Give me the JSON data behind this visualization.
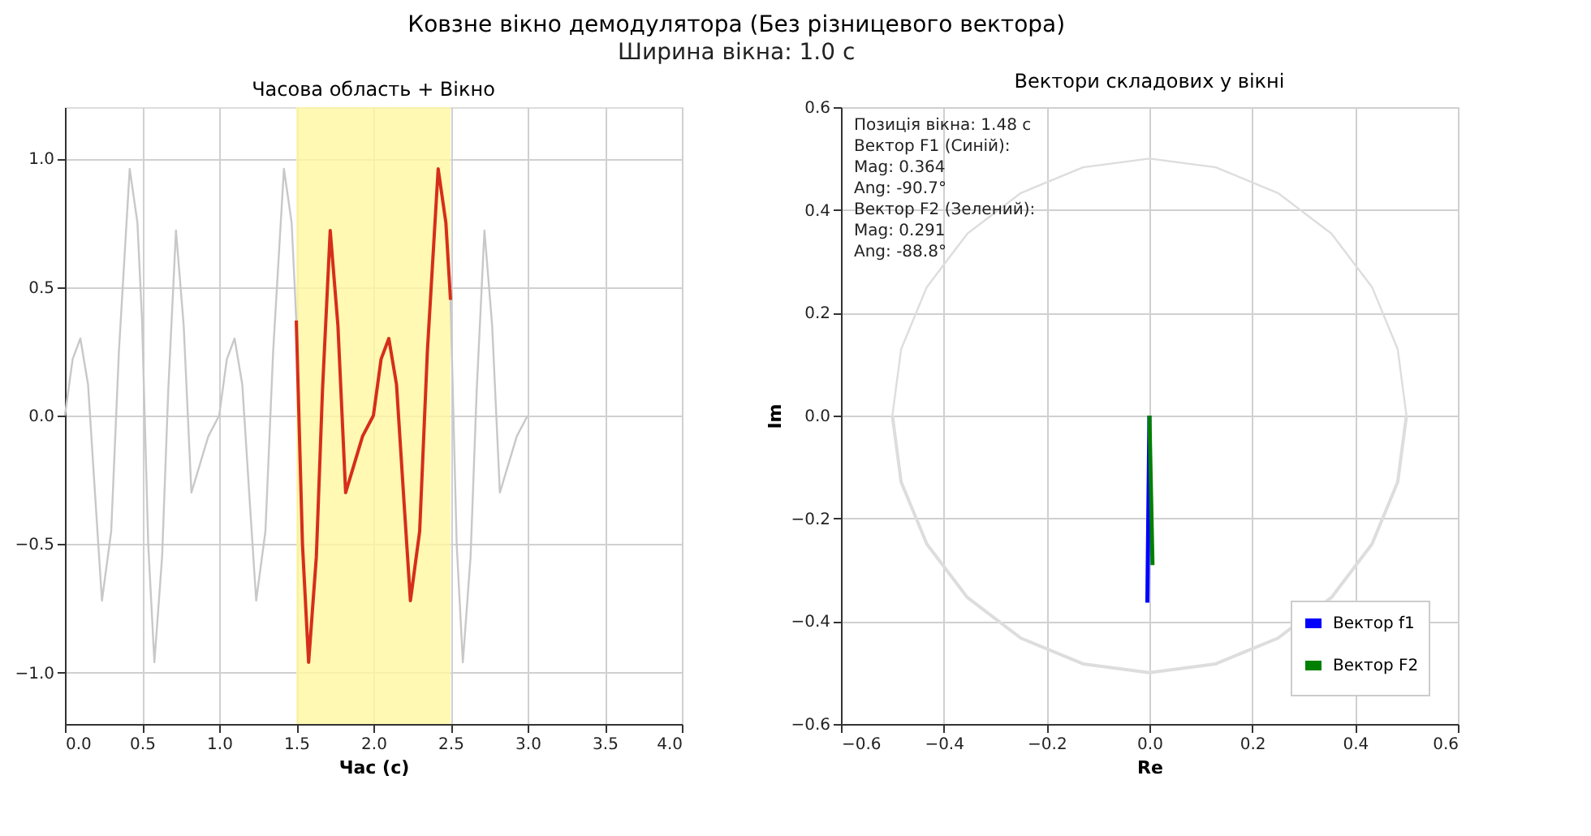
{
  "chart_data": [
    {
      "type": "line",
      "title": "Часова область + Вікно",
      "xlabel": "Час (с)",
      "series": [
        {
          "color": "#c8c8c8",
          "x": [
            0,
            0.05,
            0.1,
            0.15,
            0.2,
            0.24,
            0.3,
            0.35,
            0.42,
            0.47,
            0.5,
            0.54,
            0.58,
            0.63,
            0.67,
            0.72,
            0.77,
            0.82,
            0.87,
            0.93,
            1.0,
            1.05,
            1.1,
            1.15,
            1.2,
            1.24,
            1.3,
            1.35,
            1.42,
            1.47,
            1.5,
            2.0,
            2.5,
            2.54,
            2.58,
            2.63,
            2.67,
            2.72,
            2.77,
            2.82,
            2.87,
            2.93,
            3.0
          ],
          "values": [
            0,
            0.22,
            0.3,
            0.12,
            -0.35,
            -0.72,
            -0.45,
            0.25,
            0.96,
            0.75,
            0.37,
            -0.5,
            -0.96,
            -0.55,
            0.1,
            0.72,
            0.35,
            -0.3,
            -0.2,
            -0.08,
            0,
            0.22,
            0.3,
            0.12,
            -0.35,
            -0.72,
            -0.45,
            0.25,
            0.96,
            0.75,
            0.37,
            null,
            0.45,
            -0.5,
            -0.96,
            -0.55,
            0.1,
            0.72,
            0.35,
            -0.3,
            -0.2,
            -0.08,
            0
          ]
        },
        {
          "color": "#d62e1a",
          "x": [
            1.5,
            1.54,
            1.58,
            1.63,
            1.67,
            1.72,
            1.77,
            1.82,
            1.87,
            1.93,
            2.0,
            2.05,
            2.1,
            2.15,
            2.2,
            2.24,
            2.3,
            2.35,
            2.42,
            2.47,
            2.5
          ],
          "values": [
            0.37,
            -0.5,
            -0.96,
            -0.55,
            0.1,
            0.72,
            0.35,
            -0.3,
            -0.2,
            -0.08,
            0,
            0.22,
            0.3,
            0.12,
            -0.35,
            -0.72,
            -0.45,
            0.25,
            0.96,
            0.75,
            0.45
          ]
        }
      ],
      "bands": [
        {
          "axis": "x",
          "from": 1.5,
          "to": 2.5,
          "color": "#fff7a0"
        }
      ],
      "xlim": [
        0,
        4
      ],
      "xticks": [
        {
          "value": 0,
          "label": "0.0"
        },
        0.5,
        {
          "value": 1,
          "label": "1.0"
        },
        1.5,
        {
          "value": 2,
          "label": "2.0"
        },
        2.5,
        {
          "value": 3,
          "label": "3.0"
        },
        3.5,
        {
          "value": 4,
          "label": "4.0"
        }
      ],
      "ylim": [
        -1.2,
        1.2
      ],
      "yticks": [
        {
          "value": -1,
          "label": "−1.0"
        },
        {
          "value": -0.5,
          "label": "−0.5"
        },
        {
          "value": 0,
          "label": "0.0"
        },
        0.5,
        {
          "value": 1,
          "label": "1.0"
        }
      ],
      "grid": true,
      "legend": false,
      "marker": "none",
      "line_style": "solid",
      "annotations": [
        "Ковзне вікно демодулятора (Без різницевого вектора)",
        "Ширина вікна: 1.0 с"
      ]
    },
    {
      "type": "line",
      "title": "Вектори складових у вікні",
      "xlabel": "Re",
      "ylabel": "Im",
      "annotations": [
        "Позиція вікна: 1.48 с",
        "Вектор F1 (Синій):",
        "  Mag: 0.364",
        "  Ang: -90.7°",
        "Вектор F2 (Зелений):",
        "  Mag: 0.291",
        "  Ang: -88.8°"
      ],
      "series": [
        {
          "color": "#dddddd",
          "x": [
            -0.5,
            -0.483,
            -0.433,
            -0.354,
            -0.25,
            -0.129,
            0,
            0.129,
            0.25,
            0.354,
            0.433,
            0.483,
            0.5
          ],
          "values": [
            0,
            0.129,
            0.25,
            0.354,
            0.433,
            0.483,
            0.5,
            0.483,
            0.433,
            0.354,
            0.25,
            0.129,
            0
          ]
        },
        {
          "color": "#dddddd",
          "x": [
            -0.5,
            -0.483,
            -0.433,
            -0.354,
            -0.25,
            -0.129,
            0,
            0.129,
            0.25,
            0.354,
            0.433,
            0.483,
            0.5
          ],
          "values": [
            0,
            -0.129,
            -0.25,
            -0.354,
            -0.433,
            -0.483,
            -0.5,
            -0.483,
            -0.433,
            -0.354,
            -0.25,
            -0.129,
            0
          ]
        },
        {
          "name": "Вектор f1",
          "color": "#0000ff",
          "x": [
            0,
            -0.004
          ],
          "values": [
            0,
            -0.364
          ]
        },
        {
          "name": "Вектор F2",
          "color": "#008000",
          "x": [
            0,
            0.006
          ],
          "values": [
            0,
            -0.291
          ]
        }
      ],
      "xlim": [
        -0.6,
        0.6
      ],
      "xticks": [
        {
          "value": -0.6,
          "label": "−0.6"
        },
        {
          "value": -0.4,
          "label": "−0.4"
        },
        {
          "value": -0.2,
          "label": "−0.2"
        },
        {
          "value": 0,
          "label": "0.0"
        },
        0.2,
        0.4,
        0.6
      ],
      "ylim": [
        -0.6,
        0.6
      ],
      "yticks": [
        {
          "value": -0.6,
          "label": "−0.6"
        },
        {
          "value": -0.4,
          "label": "−0.4"
        },
        {
          "value": -0.2,
          "label": "−0.2"
        },
        {
          "value": 0,
          "label": "0.0"
        },
        0.2,
        0.4,
        0.6
      ],
      "grid": true,
      "legend": "bottom right",
      "marker": "none",
      "line_style": "solid"
    }
  ]
}
